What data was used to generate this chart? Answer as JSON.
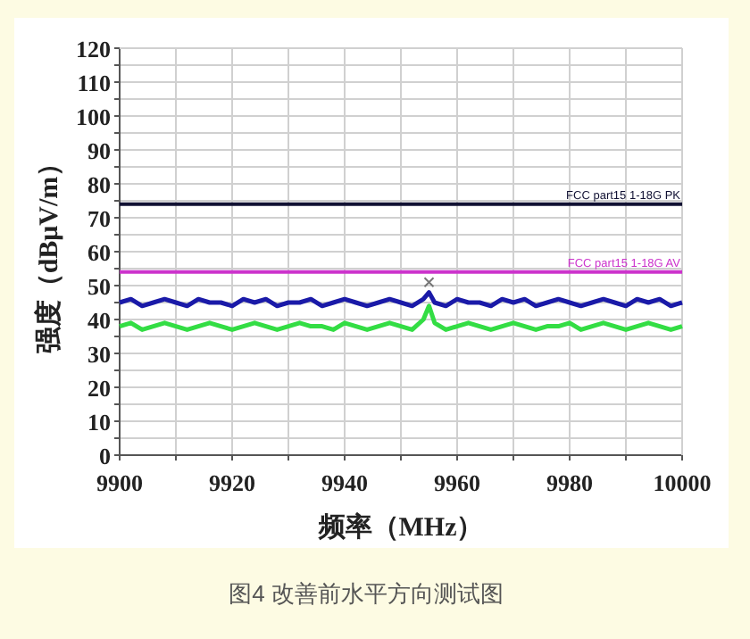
{
  "chart_data": {
    "type": "line",
    "xlabel": "频率（MHz）",
    "ylabel": "强度（dBμV/m）",
    "xlim": [
      9900,
      10000
    ],
    "ylim": [
      0,
      120
    ],
    "xticks": [
      9900,
      {
        "value": 9910,
        "label": null
      },
      9920,
      {
        "value": 9930,
        "label": null
      },
      9940,
      {
        "value": 9950,
        "label": null
      },
      9960,
      {
        "value": 9970,
        "label": null
      },
      9980,
      {
        "value": 9990,
        "label": null
      },
      10000
    ],
    "yticks": [
      0,
      {
        "value": 5,
        "label": null
      },
      10,
      {
        "value": 15,
        "label": null
      },
      20,
      {
        "value": 25,
        "label": null
      },
      30,
      {
        "value": 35,
        "label": null
      },
      40,
      {
        "value": 45,
        "label": null
      },
      50,
      {
        "value": 55,
        "label": null
      },
      60,
      {
        "value": 65,
        "label": null
      },
      70,
      {
        "value": 75,
        "label": null
      },
      80,
      {
        "value": 85,
        "label": null
      },
      90,
      {
        "value": 95,
        "label": null
      },
      100,
      {
        "value": 105,
        "label": null
      },
      110,
      {
        "value": 115,
        "label": null
      },
      120
    ],
    "grid": true,
    "ref_lines": [
      {
        "axis": "y",
        "value": 74,
        "label": "FCC part15 1-18G PK",
        "color": "#111133"
      },
      {
        "axis": "y",
        "value": 54,
        "label": "FCC part15 1-18G AV",
        "color": "#cc33cc"
      }
    ],
    "series": [
      {
        "color": "#1a1aa8",
        "x": [
          9900,
          9902,
          9904,
          9906,
          9908,
          9910,
          9912,
          9914,
          9916,
          9918,
          9920,
          9922,
          9924,
          9926,
          9928,
          9930,
          9932,
          9934,
          9936,
          9938,
          9940,
          9942,
          9944,
          9946,
          9948,
          9950,
          9952,
          9954,
          9955,
          9956,
          9958,
          9960,
          9962,
          9964,
          9966,
          9968,
          9970,
          9972,
          9974,
          9976,
          9978,
          9980,
          9982,
          9984,
          9986,
          9988,
          9990,
          9992,
          9994,
          9996,
          9998,
          10000
        ],
        "values": [
          45,
          46,
          44,
          45,
          46,
          45,
          44,
          46,
          45,
          45,
          44,
          46,
          45,
          46,
          44,
          45,
          45,
          46,
          44,
          45,
          46,
          45,
          44,
          45,
          46,
          45,
          44,
          46,
          48,
          45,
          44,
          46,
          45,
          45,
          44,
          46,
          45,
          46,
          44,
          45,
          46,
          45,
          44,
          45,
          46,
          45,
          44,
          46,
          45,
          46,
          44,
          45
        ]
      },
      {
        "color": "#33dd44",
        "x": [
          9900,
          9902,
          9904,
          9906,
          9908,
          9910,
          9912,
          9914,
          9916,
          9918,
          9920,
          9922,
          9924,
          9926,
          9928,
          9930,
          9932,
          9934,
          9936,
          9938,
          9940,
          9942,
          9944,
          9946,
          9948,
          9950,
          9952,
          9954,
          9955,
          9956,
          9958,
          9960,
          9962,
          9964,
          9966,
          9968,
          9970,
          9972,
          9974,
          9976,
          9978,
          9980,
          9982,
          9984,
          9986,
          9988,
          9990,
          9992,
          9994,
          9996,
          9998,
          10000
        ],
        "values": [
          38,
          39,
          37,
          38,
          39,
          38,
          37,
          38,
          39,
          38,
          37,
          38,
          39,
          38,
          37,
          38,
          39,
          38,
          38,
          37,
          39,
          38,
          37,
          38,
          39,
          38,
          37,
          40,
          44,
          39,
          37,
          38,
          39,
          38,
          37,
          38,
          39,
          38,
          37,
          38,
          38,
          39,
          37,
          38,
          39,
          38,
          37,
          38,
          39,
          38,
          37,
          38
        ]
      },
      {
        "type": "scatter",
        "marker": "cross",
        "color": "#777777",
        "x": [
          9955
        ],
        "values": [
          51
        ]
      }
    ],
    "annotations": [
      "图4 改善前水平方向测试图"
    ]
  }
}
